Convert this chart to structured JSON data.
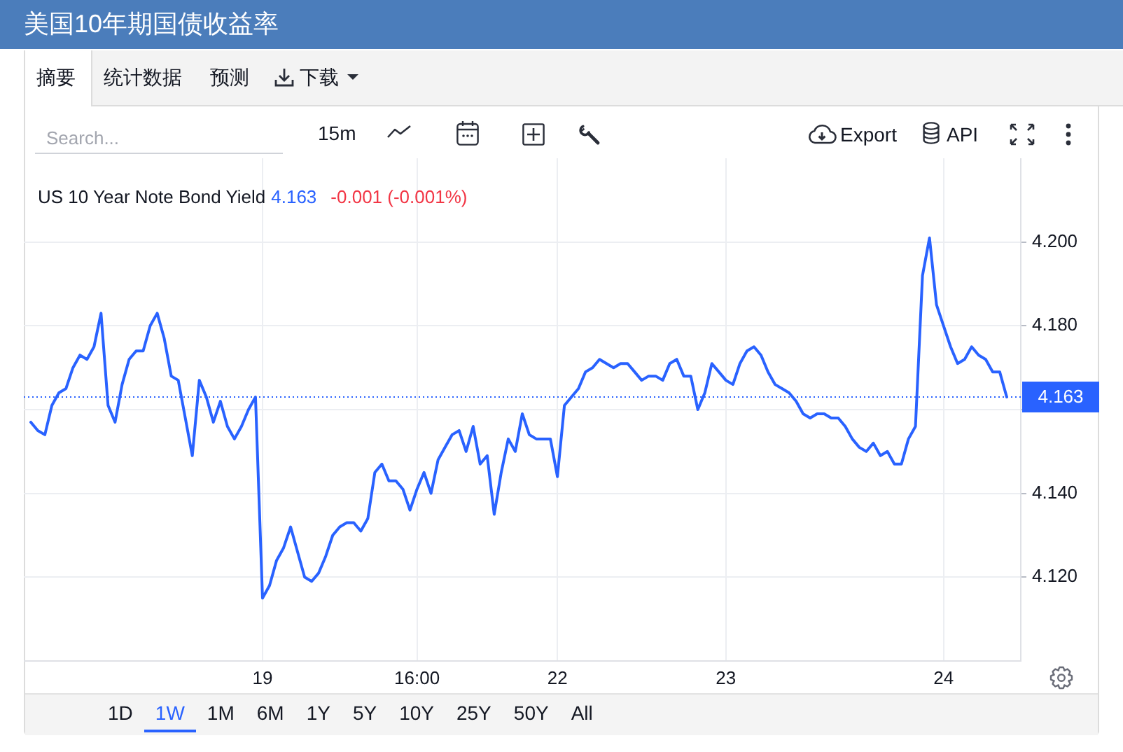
{
  "chart_data": {
    "type": "line",
    "title": "美国10年期国债收益率",
    "categories": [
      null,
      null,
      null,
      null,
      null,
      null,
      null,
      null,
      null,
      null,
      null,
      null,
      null,
      null,
      null,
      null,
      null,
      null,
      null,
      null,
      null,
      null,
      null,
      null,
      null,
      null,
      null,
      null,
      null,
      null,
      null,
      null,
      null,
      null,
      "19",
      null,
      null,
      null,
      null,
      null,
      null,
      null,
      null,
      null,
      null,
      null,
      null,
      null,
      null,
      null,
      null,
      null,
      null,
      null,
      null,
      null,
      "16:00",
      null,
      null,
      null,
      null,
      null,
      null,
      null,
      null,
      null,
      null,
      null,
      null,
      null,
      null,
      null,
      null,
      null,
      null,
      null,
      "22",
      null,
      null,
      null,
      null,
      null,
      null,
      null,
      null,
      null,
      null,
      null,
      null,
      null,
      null,
      null,
      null,
      null,
      null,
      null,
      null,
      null,
      null,
      null,
      "23",
      null,
      null,
      null,
      null,
      null,
      null,
      null,
      null,
      null,
      null,
      null,
      null,
      null,
      null,
      null,
      null,
      null,
      null,
      null,
      null,
      null,
      null,
      null,
      null,
      null,
      null,
      null,
      null,
      null,
      null,
      "24",
      null,
      null,
      null,
      null,
      null,
      null,
      null,
      null,
      null,
      null,
      null
    ],
    "series": [
      {
        "color": "#2962ff",
        "values": [
          null,
          4.157,
          4.155,
          4.154,
          4.161,
          4.164,
          4.165,
          4.17,
          4.173,
          4.172,
          4.175,
          4.183,
          4.161,
          4.157,
          4.166,
          4.172,
          4.174,
          4.174,
          4.18,
          4.183,
          4.177,
          4.168,
          4.167,
          4.158,
          4.149,
          4.167,
          4.163,
          4.157,
          4.162,
          4.156,
          4.153,
          4.156,
          4.16,
          4.163,
          4.115,
          4.118,
          4.124,
          4.127,
          4.132,
          4.126,
          4.12,
          4.119,
          4.121,
          4.125,
          4.13,
          4.132,
          4.133,
          4.133,
          4.131,
          4.134,
          4.145,
          4.147,
          4.143,
          4.143,
          4.141,
          4.136,
          4.141,
          4.145,
          4.14,
          4.148,
          4.151,
          4.154,
          4.155,
          4.15,
          4.156,
          4.147,
          4.149,
          4.135,
          4.145,
          4.153,
          4.15,
          4.159,
          4.154,
          4.153,
          4.153,
          4.153,
          4.144,
          4.161,
          4.163,
          4.165,
          4.169,
          4.17,
          4.172,
          4.171,
          4.17,
          4.171,
          4.171,
          4.169,
          4.167,
          4.168,
          4.168,
          4.167,
          4.171,
          4.172,
          4.168,
          4.168,
          4.16,
          4.164,
          4.171,
          4.169,
          4.167,
          4.166,
          4.171,
          4.174,
          4.175,
          4.173,
          4.169,
          4.166,
          4.165,
          4.164,
          4.162,
          4.159,
          4.158,
          4.159,
          4.159,
          4.158,
          4.158,
          4.156,
          4.153,
          4.151,
          4.15,
          4.152,
          4.149,
          4.15,
          4.147,
          4.147,
          4.153,
          4.156,
          4.192,
          4.201,
          4.185,
          4.18,
          4.175,
          4.171,
          4.172,
          4.175,
          4.173,
          4.172,
          4.169,
          4.169,
          4.163,
          null,
          null
        ]
      }
    ],
    "ylim": [
      4.1,
      4.22
    ],
    "yticks": [
      {
        "value": 4.12,
        "label": "4.120"
      },
      {
        "value": 4.14,
        "label": "4.140"
      },
      {
        "value": 4.16,
        "label": null
      },
      {
        "value": 4.18,
        "label": "4.180"
      },
      {
        "value": 4.2,
        "label": "4.200"
      }
    ],
    "grid": true,
    "ref_lines": [
      {
        "axis": "y",
        "value": 4.163,
        "label": "4.163",
        "color": "#2962ff",
        "line_style": "dotted"
      }
    ],
    "annotations": [
      "摘要",
      "统计数据",
      "预测",
      "下载",
      "Search...",
      "15m",
      "Export",
      "API",
      "US 10 Year Note Bond Yield",
      "4.163",
      "-0.001 (-0.001%)",
      "1D",
      "1W",
      "1M",
      "6M",
      "1Y",
      "5Y",
      "10Y",
      "25Y",
      "50Y",
      "All"
    ]
  }
}
